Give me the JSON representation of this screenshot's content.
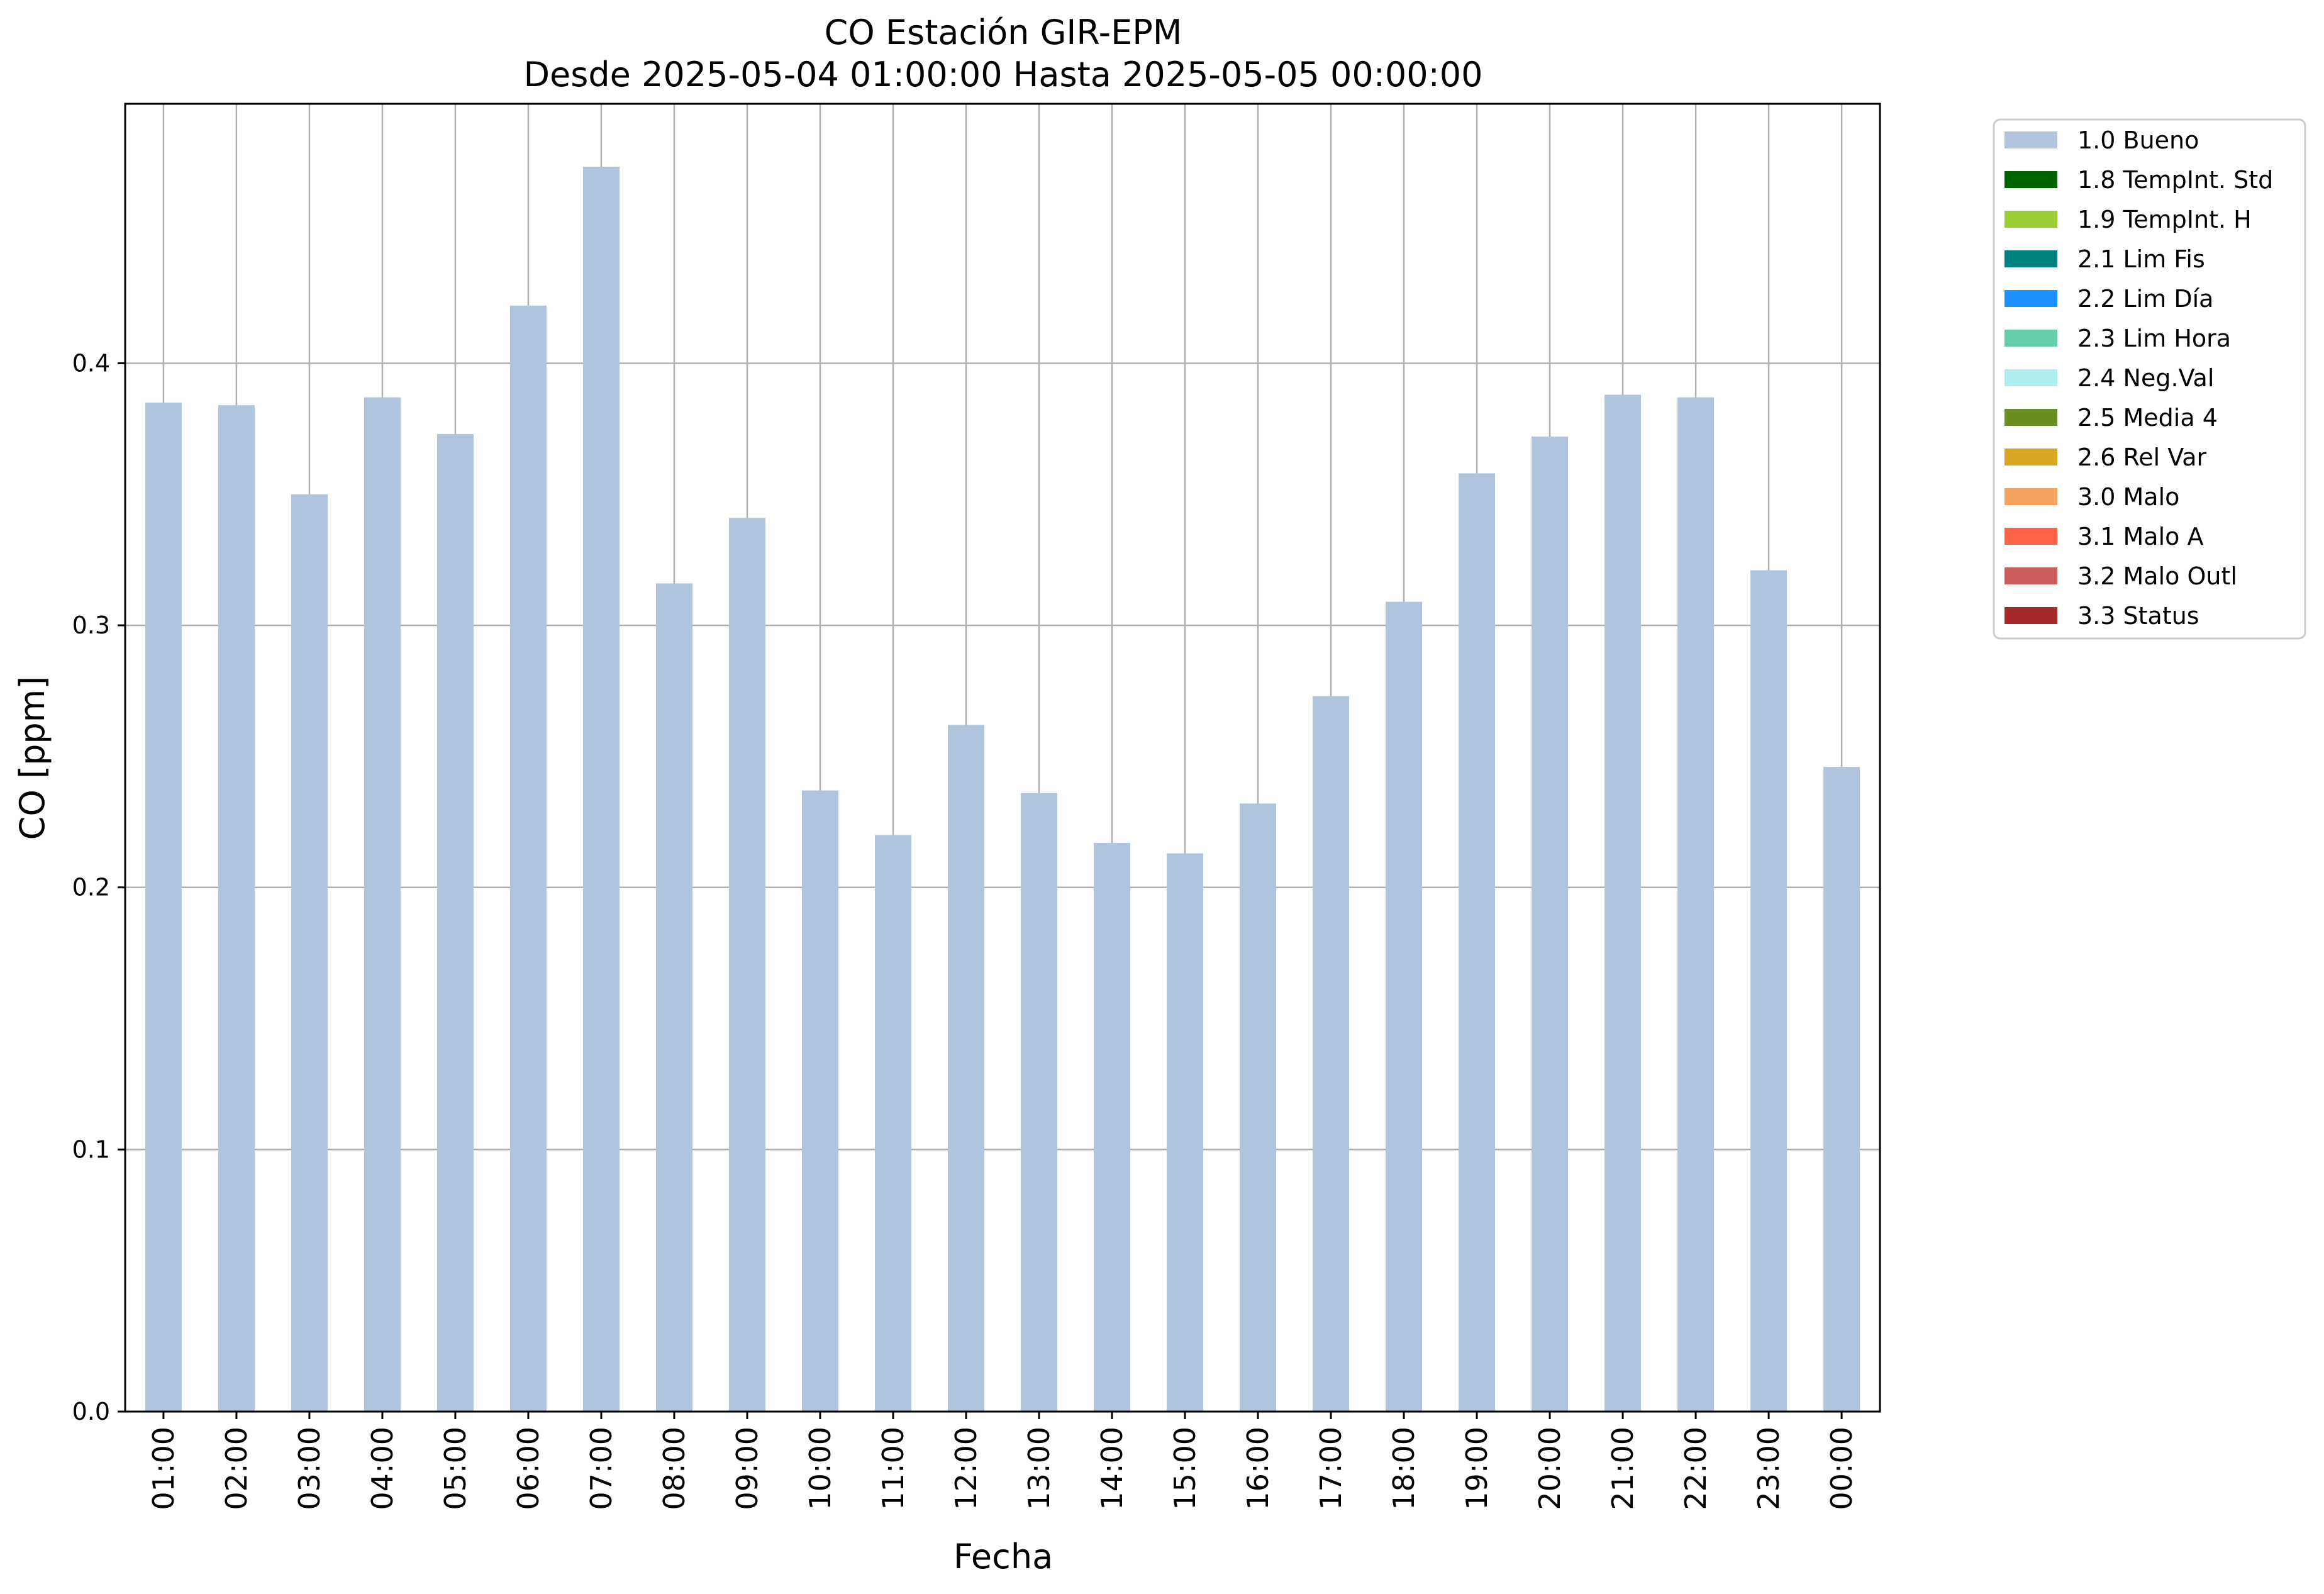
{
  "chart_data": {
    "type": "bar",
    "title": "CO Estación GIR-EPM",
    "subtitle": "Desde 2025-05-04 01:00:00 Hasta 2025-05-05 00:00:00",
    "xlabel": "Fecha",
    "ylabel": "CO [ppm]",
    "ylim": [
      0,
      0.499
    ],
    "yticks": [
      "0.0",
      "0.1",
      "0.2",
      "0.3",
      "0.4"
    ],
    "grid": true,
    "legend_position": "outside top-right",
    "categories": [
      "01:00",
      "02:00",
      "03:00",
      "04:00",
      "05:00",
      "06:00",
      "07:00",
      "08:00",
      "09:00",
      "10:00",
      "11:00",
      "12:00",
      "13:00",
      "14:00",
      "15:00",
      "16:00",
      "17:00",
      "18:00",
      "19:00",
      "20:00",
      "21:00",
      "22:00",
      "23:00",
      "00:00"
    ],
    "series": [
      {
        "name": "1.0 Bueno",
        "color": "#b0c4de",
        "values": [
          0.385,
          0.384,
          0.35,
          0.387,
          0.373,
          0.422,
          0.475,
          0.316,
          0.341,
          0.237,
          0.22,
          0.262,
          0.236,
          0.217,
          0.213,
          0.232,
          0.273,
          0.309,
          0.358,
          0.372,
          0.388,
          0.387,
          0.321,
          0.246
        ]
      }
    ],
    "legend": [
      {
        "label": "1.0 Bueno",
        "color": "#b0c4de"
      },
      {
        "label": "1.8 TempInt. Std",
        "color": "#006400"
      },
      {
        "label": "1.9 TempInt. H",
        "color": "#9acd32"
      },
      {
        "label": "2.1 Lim Fis",
        "color": "#008080"
      },
      {
        "label": "2.2 Lim Día",
        "color": "#1e90ff"
      },
      {
        "label": "2.3 Lim Hora",
        "color": "#66cdaa"
      },
      {
        "label": "2.4 Neg.Val",
        "color": "#afeeee"
      },
      {
        "label": "2.5 Media 4",
        "color": "#6b8e23"
      },
      {
        "label": "2.6 Rel Var",
        "color": "#daa520"
      },
      {
        "label": "3.0 Malo",
        "color": "#f4a460"
      },
      {
        "label": "3.1 Malo A",
        "color": "#ff6347"
      },
      {
        "label": "3.2 Malo Outl",
        "color": "#cd5c5c"
      },
      {
        "label": "3.3 Status",
        "color": "#a52a2a"
      }
    ]
  }
}
